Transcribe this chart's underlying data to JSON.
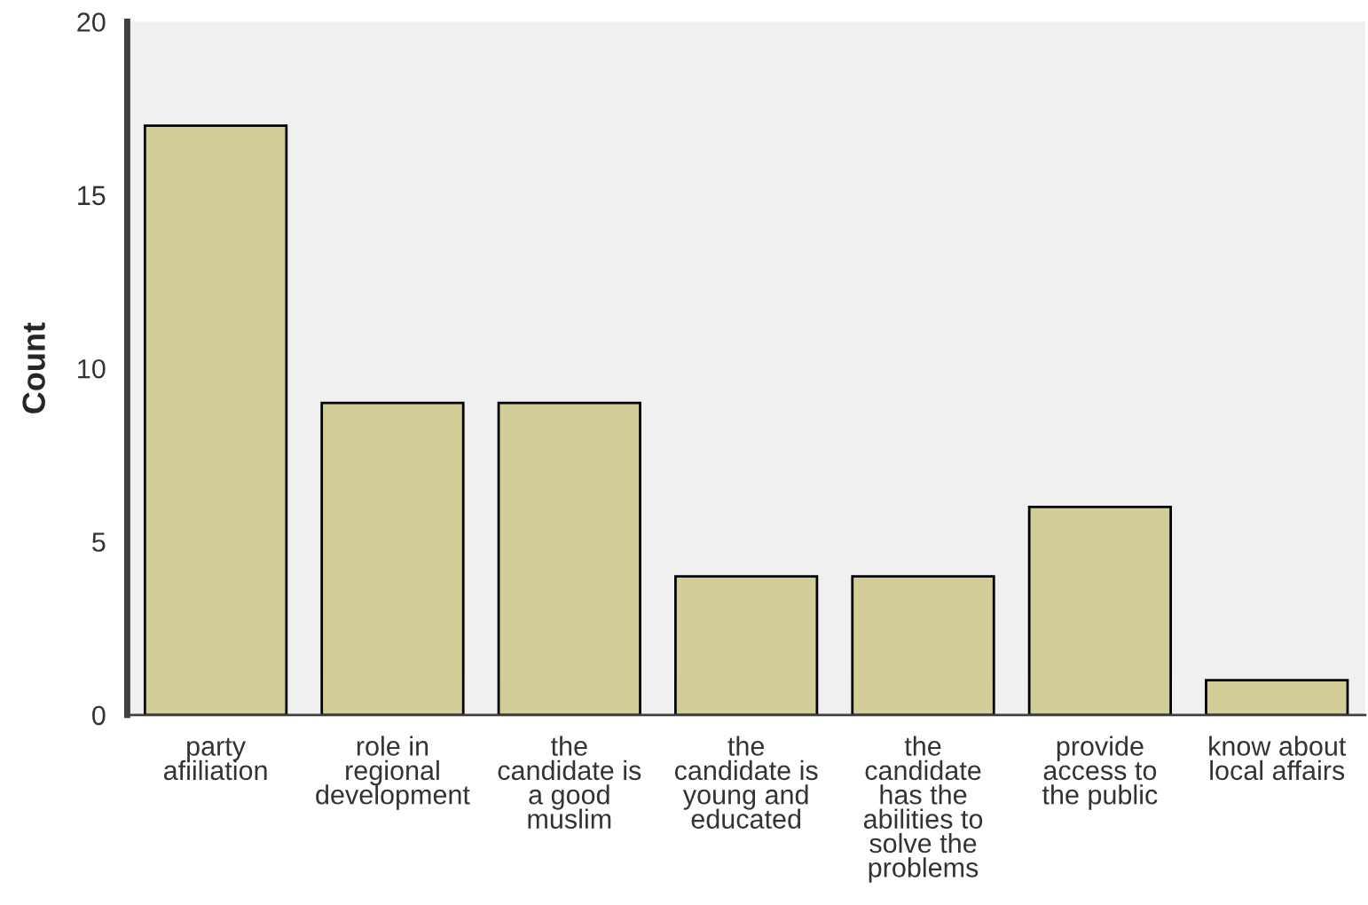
{
  "chart_data": {
    "type": "bar",
    "ylabel": "Count",
    "categories": [
      "party\nafiiliation",
      "role in\nregional\ndevelopment",
      "the\ncandidate is\na good\nmuslim",
      "the\ncandidate is\nyoung and\neducated",
      "the\ncandidate\nhas the\nabilities to\nsolve the\nproblems",
      "provide\naccess to\nthe public",
      "know about\nlocal affairs"
    ],
    "values": [
      17,
      9,
      9,
      4,
      4,
      6,
      1
    ],
    "color": "#d3ce97",
    "ylim": [
      0,
      20
    ],
    "yticks": [
      0,
      5,
      10,
      15,
      20
    ],
    "grid": false
  }
}
